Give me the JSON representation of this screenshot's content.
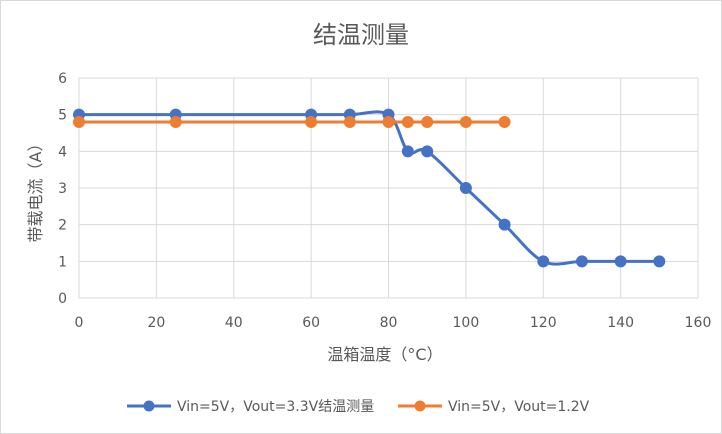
{
  "chart_data": {
    "type": "line",
    "title": "结温测量",
    "xlabel": "温箱温度（°C）",
    "ylabel": "带载电流（A）",
    "xlim": [
      0,
      160
    ],
    "ylim": [
      0,
      6
    ],
    "xticks": [
      0,
      20,
      40,
      60,
      80,
      100,
      120,
      140,
      160
    ],
    "yticks": [
      0,
      1,
      2,
      3,
      4,
      5,
      6
    ],
    "grid": true,
    "legend_position": "bottom",
    "series": [
      {
        "name": "Vin=5V，Vout=3.3V结温测量",
        "color": "#4472c4",
        "smooth": true,
        "x": [
          0,
          25,
          60,
          70,
          80,
          85,
          90,
          100,
          110,
          120,
          130,
          140,
          150
        ],
        "y": [
          5,
          5,
          5,
          5,
          5,
          4,
          4,
          3,
          2,
          1,
          1,
          1,
          1
        ]
      },
      {
        "name": "Vin=5V，Vout=1.2V",
        "color": "#ed7d31",
        "smooth": false,
        "x": [
          0,
          25,
          60,
          70,
          80,
          85,
          90,
          100,
          110
        ],
        "y": [
          4.8,
          4.8,
          4.8,
          4.8,
          4.8,
          4.8,
          4.8,
          4.8,
          4.8
        ]
      }
    ]
  }
}
